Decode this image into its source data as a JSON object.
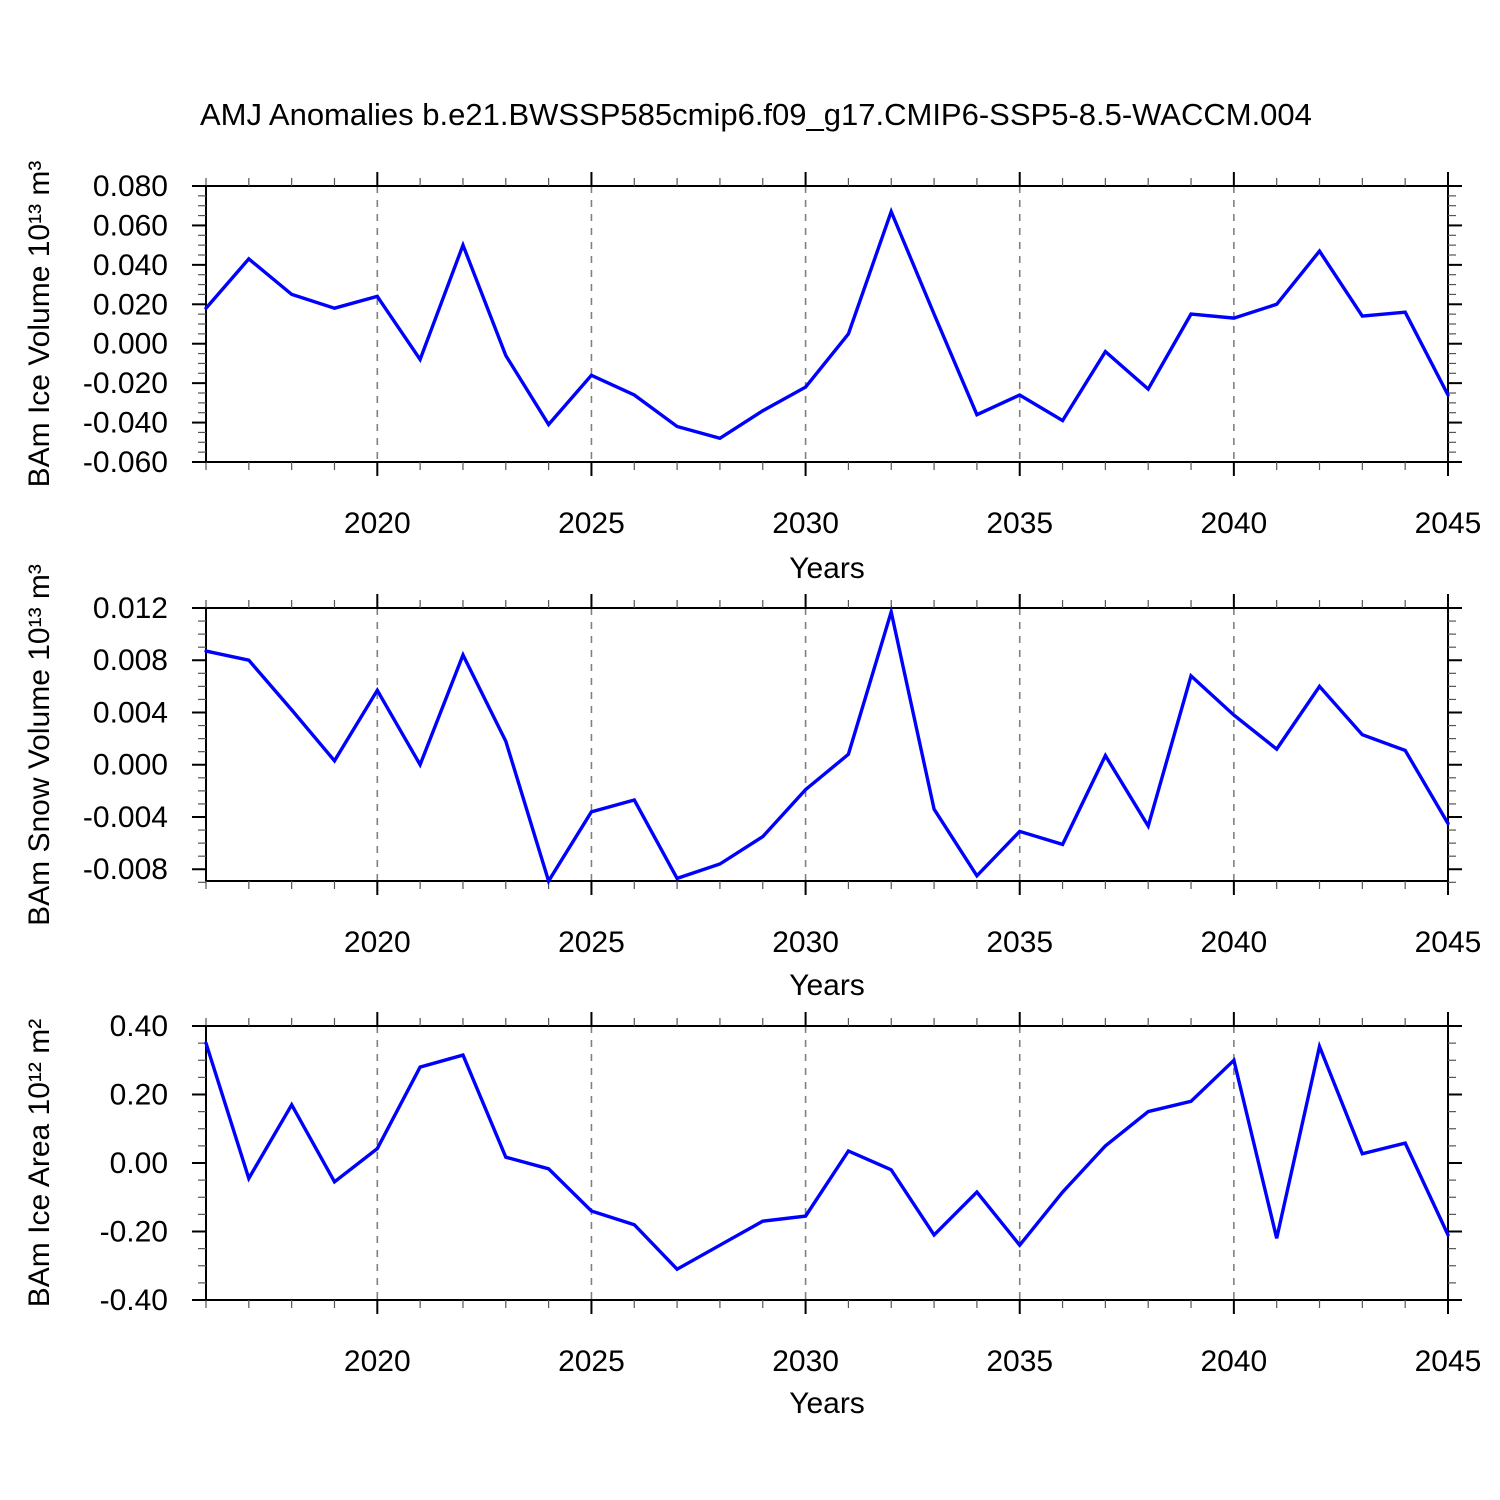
{
  "figure": {
    "title": "AMJ Anomalies b.e21.BWSSP585cmip6.f09_g17.CMIP6-SSP5-8.5-WACCM.004",
    "line_color": "#0000ff",
    "axis_color": "#000000",
    "grid_color": "#808080",
    "background": "#ffffff"
  },
  "chart_data": [
    {
      "type": "line",
      "name": "ice-volume",
      "title": "",
      "ylabel": "BAm Ice Volume 10¹³ m³",
      "xlabel": "Years",
      "legend": "none",
      "grid": "vertical dashed lines at 5-year major ticks",
      "x": [
        2016,
        2017,
        2018,
        2019,
        2020,
        2021,
        2022,
        2023,
        2024,
        2025,
        2026,
        2027,
        2028,
        2029,
        2030,
        2031,
        2032,
        2033,
        2034,
        2035,
        2036,
        2037,
        2038,
        2039,
        2040,
        2041,
        2042,
        2043,
        2044,
        2045
      ],
      "series": [
        {
          "name": "BAm Ice Volume anomaly",
          "values": [
            0.018,
            0.043,
            0.025,
            0.018,
            0.024,
            -0.008,
            0.05,
            -0.006,
            -0.041,
            -0.016,
            -0.026,
            -0.042,
            -0.048,
            -0.034,
            -0.022,
            0.005,
            0.067,
            0.015,
            -0.036,
            -0.026,
            -0.039,
            -0.004,
            -0.023,
            0.015,
            0.013,
            0.02,
            0.047,
            0.014,
            0.016,
            -0.026
          ]
        }
      ],
      "xlim": [
        2016,
        2045
      ],
      "ylim": [
        -0.06,
        0.08
      ],
      "xticks": [
        2020,
        2025,
        2030,
        2035,
        2040,
        2045
      ],
      "xminor_step": 1,
      "grid_x": [
        2020,
        2025,
        2030,
        2035,
        2040
      ],
      "ytick_labels": [
        "0.080",
        "0.060",
        "0.040",
        "0.020",
        "0.000",
        "-0.020",
        "-0.040",
        "-0.060"
      ],
      "yticks": [
        0.08,
        0.06,
        0.04,
        0.02,
        0.0,
        -0.02,
        -0.04,
        -0.06
      ],
      "yminor_step": 0.005
    },
    {
      "type": "line",
      "name": "snow-volume",
      "title": "",
      "ylabel": "BAm Snow Volume 10¹³ m³",
      "xlabel": "Years",
      "legend": "none",
      "grid": "vertical dashed lines at 5-year major ticks",
      "x": [
        2016,
        2017,
        2018,
        2019,
        2020,
        2021,
        2022,
        2023,
        2024,
        2025,
        2026,
        2027,
        2028,
        2029,
        2030,
        2031,
        2032,
        2033,
        2034,
        2035,
        2036,
        2037,
        2038,
        2039,
        2040,
        2041,
        2042,
        2043,
        2044,
        2045
      ],
      "series": [
        {
          "name": "BAm Snow Volume anomaly",
          "values": [
            0.0087,
            0.008,
            0.0042,
            0.0003,
            0.0057,
            0.0,
            0.0084,
            0.0018,
            -0.0089,
            -0.0036,
            -0.0027,
            -0.0087,
            -0.0076,
            -0.0055,
            -0.0019,
            0.0008,
            0.0117,
            -0.0034,
            -0.0085,
            -0.0051,
            -0.0061,
            0.0007,
            -0.0047,
            0.0068,
            0.0038,
            0.0012,
            0.006,
            0.0023,
            0.0011,
            -0.0045
          ]
        }
      ],
      "xlim": [
        2016,
        2045
      ],
      "ylim": [
        -0.0089,
        0.012
      ],
      "xticks": [
        2020,
        2025,
        2030,
        2035,
        2040,
        2045
      ],
      "xminor_step": 1,
      "grid_x": [
        2020,
        2025,
        2030,
        2035,
        2040
      ],
      "ytick_labels": [
        "0.012",
        "0.008",
        "0.004",
        "0.000",
        "-0.004",
        "-0.008"
      ],
      "yticks": [
        0.012,
        0.008,
        0.004,
        0.0,
        -0.004,
        -0.008
      ],
      "yminor_step": 0.001
    },
    {
      "type": "line",
      "name": "ice-area",
      "title": "",
      "ylabel": "BAm Ice Area 10¹² m²",
      "xlabel": "Years",
      "legend": "none",
      "grid": "vertical dashed lines at 5-year major ticks",
      "x": [
        2016,
        2017,
        2018,
        2019,
        2020,
        2021,
        2022,
        2023,
        2024,
        2025,
        2026,
        2027,
        2028,
        2029,
        2030,
        2031,
        2032,
        2033,
        2034,
        2035,
        2036,
        2037,
        2038,
        2039,
        2040,
        2041,
        2042,
        2043,
        2044,
        2045
      ],
      "series": [
        {
          "name": "BAm Ice Area anomaly",
          "values": [
            0.35,
            -0.045,
            0.17,
            -0.055,
            0.042,
            0.28,
            0.315,
            0.017,
            -0.017,
            -0.14,
            -0.18,
            -0.31,
            -0.24,
            -0.17,
            -0.155,
            0.035,
            -0.02,
            -0.21,
            -0.085,
            -0.24,
            -0.085,
            0.05,
            0.15,
            0.18,
            0.3,
            -0.22,
            0.34,
            0.027,
            0.058,
            -0.21
          ]
        }
      ],
      "xlim": [
        2016,
        2045
      ],
      "ylim": [
        -0.4,
        0.4
      ],
      "xticks": [
        2020,
        2025,
        2030,
        2035,
        2040,
        2045
      ],
      "xminor_step": 1,
      "grid_x": [
        2020,
        2025,
        2030,
        2035,
        2040
      ],
      "ytick_labels": [
        "0.40",
        "0.20",
        "0.00",
        "-0.20",
        "-0.40"
      ],
      "yticks": [
        0.4,
        0.2,
        0.0,
        -0.2,
        -0.4
      ],
      "yminor_step": 0.05
    }
  ]
}
